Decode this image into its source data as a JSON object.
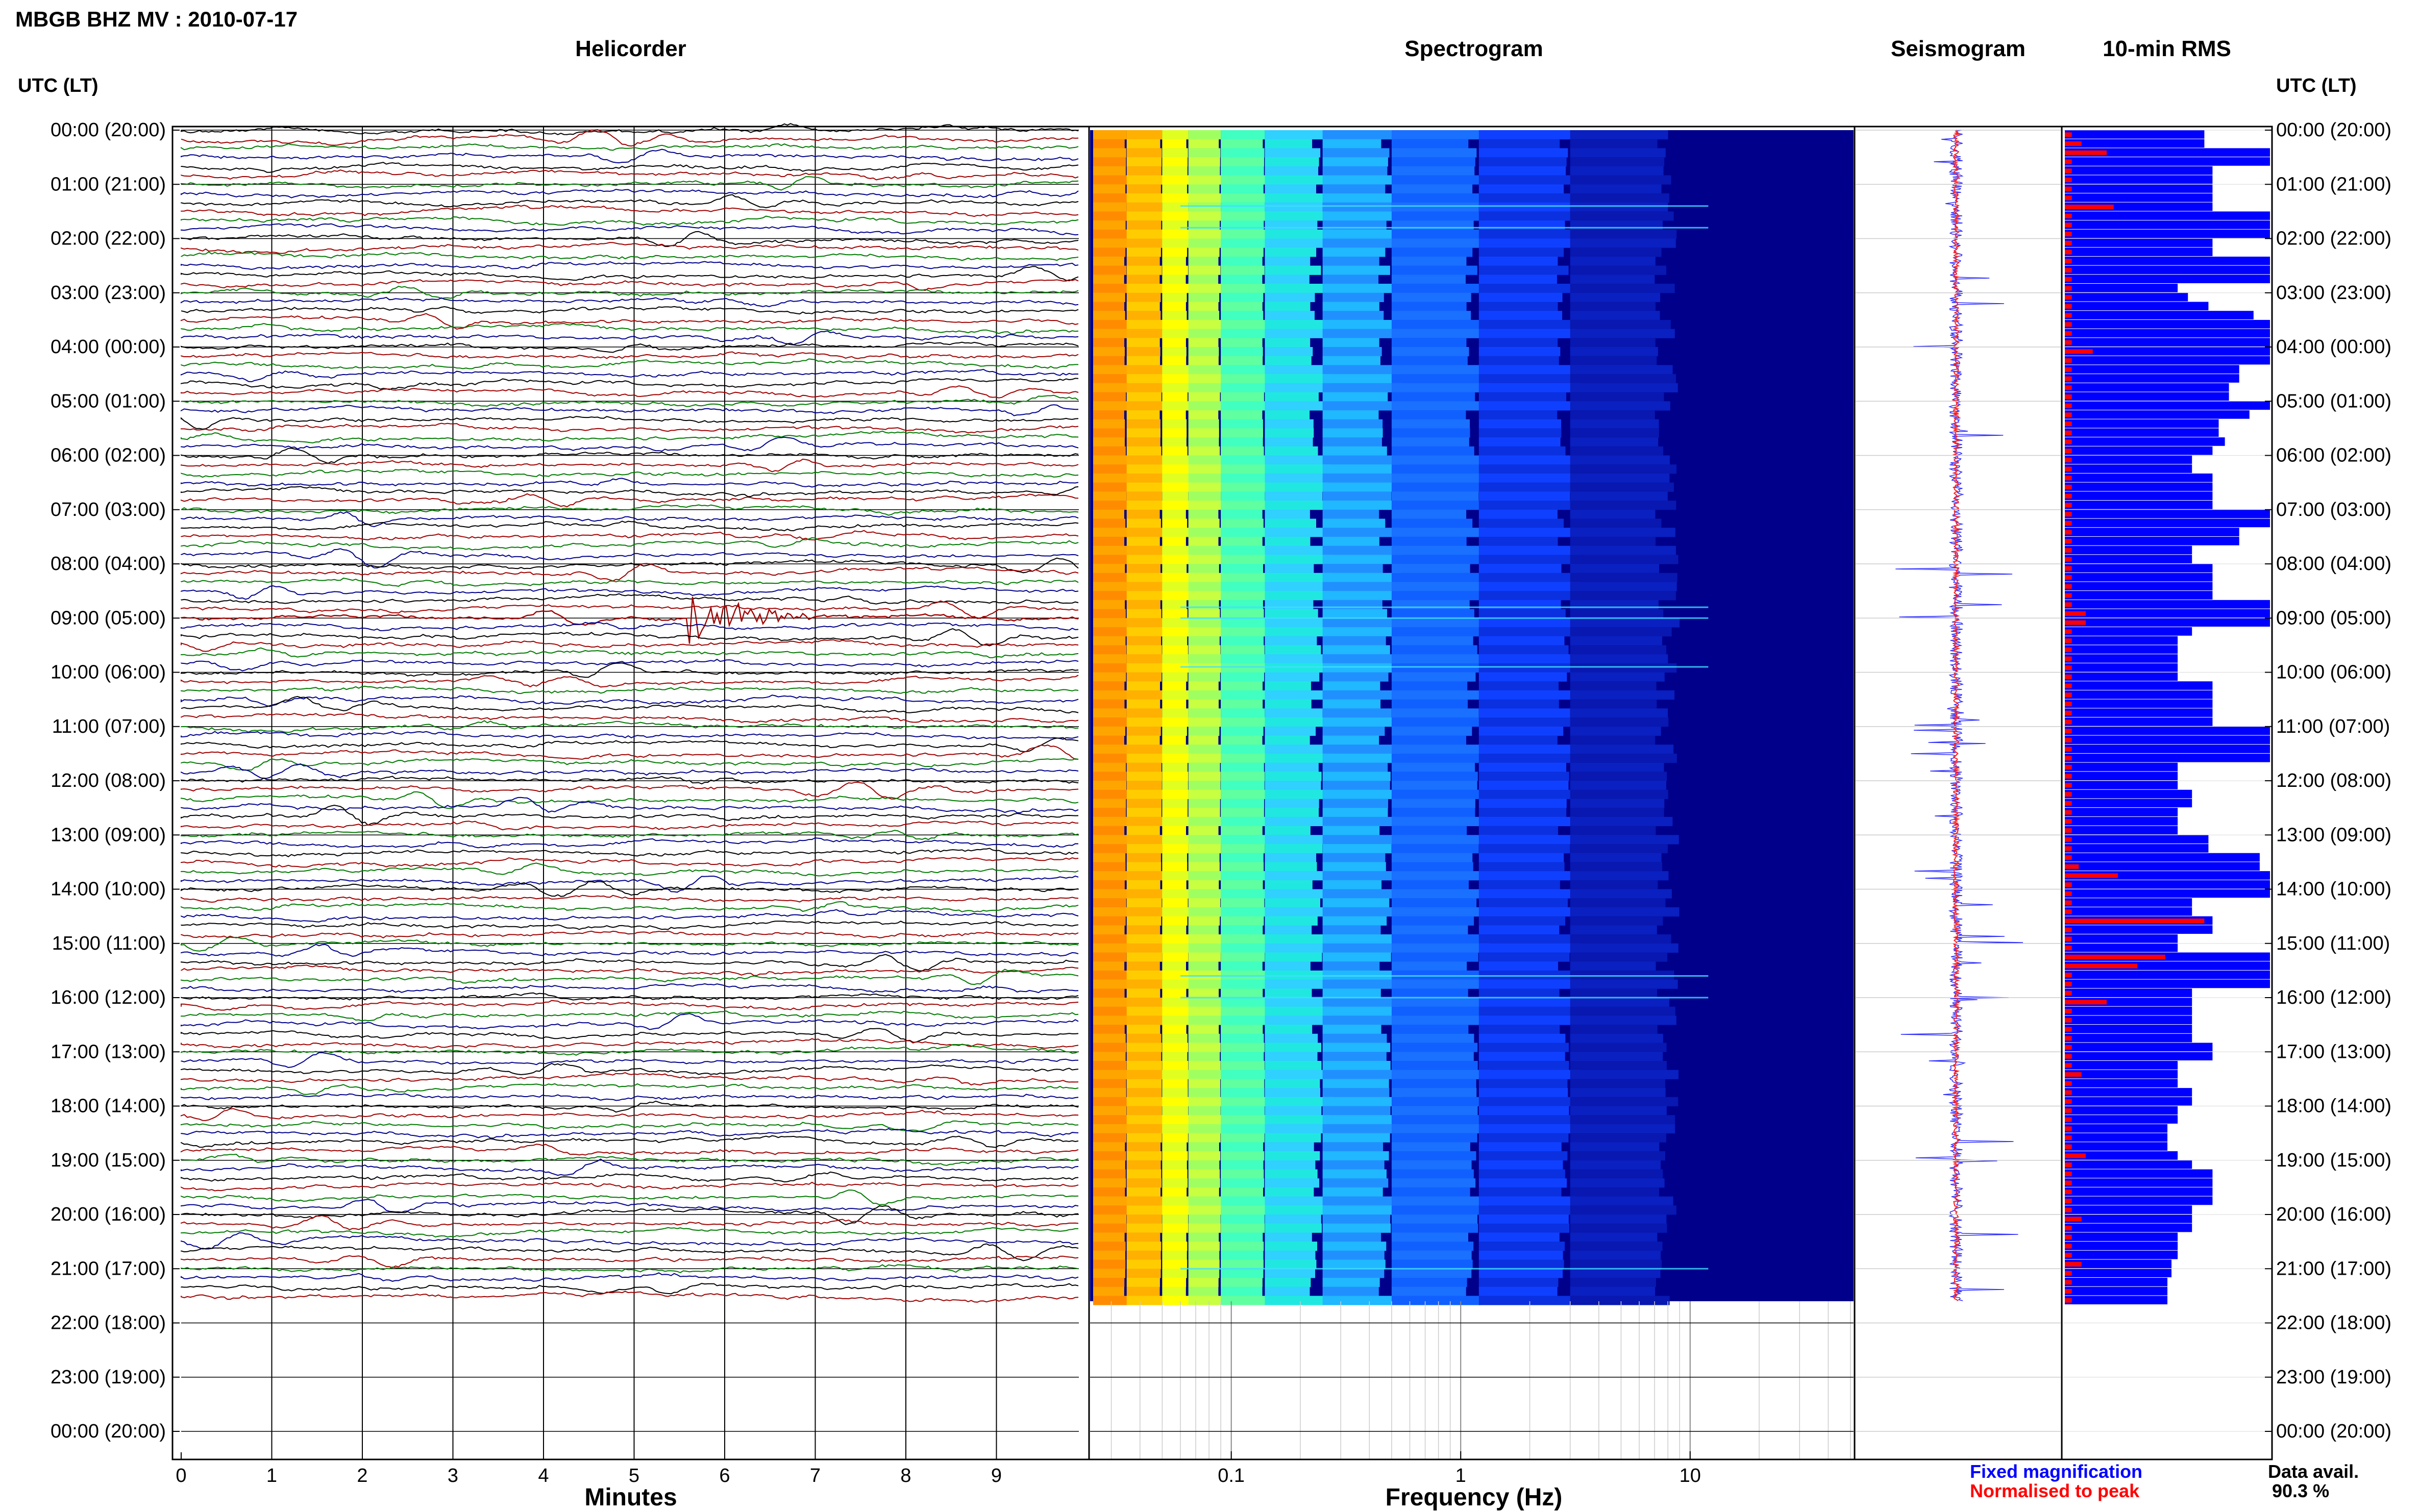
{
  "page": {
    "title": "MBGB BHZ MV : 2010-07-17"
  },
  "panels": {
    "helicorder_title": "Helicorder",
    "spectrogram_title": "Spectrogram",
    "seismogram_title": "Seismogram",
    "rms_title": "10-min RMS"
  },
  "axes": {
    "left_time_header": "UTC (LT)",
    "right_time_header": "UTC (LT)",
    "minutes_label": "Minutes",
    "frequency_label": "Frequency (Hz)"
  },
  "legend": {
    "fixed": "Fixed magnification",
    "normalised": "Normalised to peak",
    "fixed_color": "#0000ff",
    "normalised_color": "#ff0000"
  },
  "availability": {
    "label": "Data avail.",
    "value": "90.3 %"
  },
  "colors": {
    "trace_black": "#000000",
    "trace_red": "#a00000",
    "trace_green": "#007a00",
    "trace_blue": "#00008c",
    "rms_blue": "#0000ff",
    "rms_red": "#ff0000",
    "spec_background": "#00008b"
  },
  "chart_data": {
    "type": "helicorder_spectrogram",
    "time_labels": [
      "00:00 (20:00)",
      "01:00 (21:00)",
      "02:00 (22:00)",
      "03:00 (23:00)",
      "04:00 (00:00)",
      "05:00 (01:00)",
      "06:00 (02:00)",
      "07:00 (03:00)",
      "08:00 (04:00)",
      "09:00 (05:00)",
      "10:00 (06:00)",
      "11:00 (07:00)",
      "12:00 (08:00)",
      "13:00 (09:00)",
      "14:00 (10:00)",
      "15:00 (11:00)",
      "16:00 (12:00)",
      "17:00 (13:00)",
      "18:00 (14:00)",
      "19:00 (15:00)",
      "20:00 (16:00)",
      "21:00 (17:00)",
      "22:00 (18:00)",
      "23:00 (19:00)",
      "00:00 (20:00)"
    ],
    "minute_ticks": [
      "0",
      "1",
      "2",
      "3",
      "4",
      "5",
      "6",
      "7",
      "8",
      "9"
    ],
    "minutes_range": [
      0,
      10
    ],
    "frequency_ticks": [
      "0.1",
      "1",
      "10"
    ],
    "frequency_range_hz": [
      0.025,
      50
    ],
    "frequency_scale": "log",
    "data_end_hour": 21.6,
    "rows_per_hour": 6,
    "events": [
      {
        "hour": 9.0,
        "minute_start": 5.6,
        "minute_end": 8.0,
        "description": "largest burst"
      }
    ],
    "spectrogram_lines": [
      {
        "hour": 1.4
      },
      {
        "hour": 1.8
      },
      {
        "hour": 8.8
      },
      {
        "hour": 9.0
      },
      {
        "hour": 9.9
      },
      {
        "hour": 15.6
      },
      {
        "hour": 16.0
      },
      {
        "hour": 21.0
      }
    ],
    "rms_normalized_full": [
      0.68,
      0.68,
      1.0,
      1.0,
      0.72,
      0.72,
      0.72,
      0.72,
      0.72,
      1.0,
      1.0,
      1.0,
      0.72,
      0.72,
      1.0,
      1.0,
      1.0,
      0.55,
      0.6,
      0.7,
      0.92,
      1.0,
      1.0,
      1.0,
      1.0,
      1.0,
      0.85,
      0.85,
      0.8,
      0.8,
      1.0,
      0.9,
      0.75,
      0.75,
      0.78,
      0.72,
      0.62,
      0.62,
      0.72,
      0.72,
      0.72,
      0.72,
      1.0,
      1.0,
      0.85,
      0.85,
      0.62,
      0.62,
      0.72,
      0.72,
      0.72,
      0.72,
      1.0,
      1.0,
      1.0,
      0.62,
      0.55,
      0.55,
      0.55,
      0.55,
      0.55,
      0.72,
      0.72,
      0.72,
      0.72,
      0.72,
      1.0,
      1.0,
      1.0,
      1.0,
      0.55,
      0.55,
      0.55,
      0.62,
      0.62,
      0.55,
      0.55,
      0.55,
      0.7,
      0.7,
      0.95,
      0.95,
      1.0,
      1.0,
      1.0,
      0.62,
      0.62,
      0.72,
      0.72,
      0.55,
      0.55,
      1.0,
      1.0,
      1.0,
      1.0,
      0.62,
      0.62,
      0.62,
      0.62,
      0.62,
      0.62,
      0.72,
      0.72,
      0.55,
      0.55,
      0.55,
      0.62,
      0.62,
      0.55,
      0.55,
      0.5,
      0.5,
      0.5,
      0.55,
      0.62,
      0.72,
      0.72,
      0.72,
      0.72,
      0.62,
      0.62,
      0.62,
      0.55,
      0.55,
      0.55,
      0.52,
      0.52,
      0.5,
      0.5,
      0.5
    ],
    "rms_normalized_peak": [
      0.05,
      0.12,
      0.3,
      0.05,
      0.05,
      0.05,
      0.05,
      0.05,
      0.35,
      0.05,
      0.05,
      0.05,
      0.05,
      0.05,
      0.05,
      0.05,
      0.05,
      0.05,
      0.05,
      0.05,
      0.05,
      0.05,
      0.05,
      0.05,
      0.2,
      0.05,
      0.05,
      0.05,
      0.05,
      0.05,
      0.05,
      0.05,
      0.05,
      0.05,
      0.05,
      0.05,
      0.05,
      0.05,
      0.05,
      0.05,
      0.05,
      0.05,
      0.05,
      0.05,
      0.05,
      0.05,
      0.05,
      0.05,
      0.05,
      0.05,
      0.05,
      0.05,
      0.05,
      0.15,
      0.15,
      0.05,
      0.05,
      0.05,
      0.05,
      0.05,
      0.05,
      0.05,
      0.05,
      0.05,
      0.05,
      0.05,
      0.05,
      0.05,
      0.05,
      0.05,
      0.05,
      0.05,
      0.05,
      0.05,
      0.05,
      0.05,
      0.05,
      0.05,
      0.05,
      0.05,
      0.05,
      0.1,
      0.38,
      0.05,
      0.05,
      0.05,
      0.05,
      1.0,
      0.05,
      0.05,
      0.05,
      0.72,
      0.52,
      0.05,
      0.05,
      0.05,
      0.3,
      0.05,
      0.05,
      0.05,
      0.05,
      0.05,
      0.05,
      0.05,
      0.12,
      0.05,
      0.05,
      0.05,
      0.05,
      0.05,
      0.05,
      0.05,
      0.05,
      0.15,
      0.05,
      0.05,
      0.05,
      0.05,
      0.05,
      0.05,
      0.12,
      0.05,
      0.05,
      0.05,
      0.05,
      0.12,
      0.05,
      0.05,
      0.05,
      0.05
    ]
  }
}
